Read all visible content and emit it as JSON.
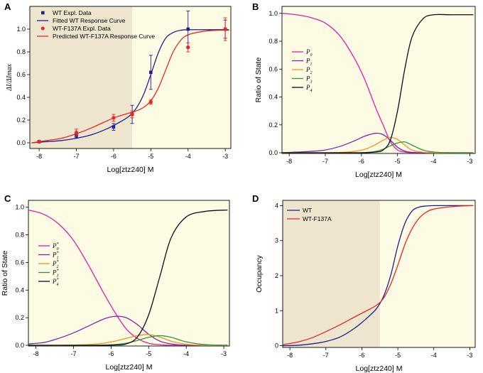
{
  "colors": {
    "background": "#fdfbe3",
    "shade": "#eee5cf",
    "wt": "#1f1f8f",
    "mut": "#e8262a",
    "p0": "#e21ea0",
    "p1": "#7b27a8",
    "p2": "#f2931d",
    "p3": "#2a9a3c",
    "p4": "#0d0d1a"
  },
  "chart_data": [
    {
      "panel": "A",
      "type": "line",
      "title": "",
      "xlabel": "Log[ztz240] M",
      "ylabel": "ΔI/ΔImax",
      "xlim": [
        -8.25,
        -2.85
      ],
      "ylim": [
        -0.05,
        1.2
      ],
      "xticks": [
        -8,
        -7,
        -6,
        -5,
        -4,
        -3
      ],
      "yticks": [
        0.0,
        0.2,
        0.4,
        0.6,
        0.8,
        1.0
      ],
      "xtick_labels": [
        "-8",
        "-7",
        "-6",
        "-5",
        "-4",
        "-3"
      ],
      "ytick_labels": [
        "0.0",
        "0.2",
        "0.4",
        "0.6",
        "0.8",
        "1.0"
      ],
      "shaded_region_x": [
        -8.25,
        -5.5
      ],
      "legend_position": "top-left",
      "legend": [
        "WT Expl. Data",
        "Fitted WT Response Curve",
        "WT-F137A Expl. Data",
        "Predicted WT-F137A Response Curve"
      ],
      "series": [
        {
          "name": "WT Expl. Data",
          "kind": "scatter",
          "marker": "square",
          "color_key": "wt",
          "x": [
            -8,
            -7,
            -6,
            -5.5,
            -5,
            -4,
            -3
          ],
          "y": [
            0.01,
            0.06,
            0.14,
            0.25,
            0.62,
            1.0,
            1.0
          ],
          "err": [
            0.01,
            0.02,
            0.03,
            0.08,
            0.15,
            0.16,
            0.08
          ]
        },
        {
          "name": "Fitted WT Response Curve",
          "kind": "line",
          "color_key": "wt",
          "x": [
            -8.2,
            -7.8,
            -7.4,
            -7.0,
            -6.6,
            -6.2,
            -5.9,
            -5.6,
            -5.4,
            -5.2,
            -5.0,
            -4.8,
            -4.6,
            -4.4,
            -4.2,
            -4.0,
            -3.6,
            -3.2,
            -2.9
          ],
          "y": [
            0.0,
            0.01,
            0.02,
            0.04,
            0.07,
            0.12,
            0.17,
            0.23,
            0.3,
            0.42,
            0.6,
            0.79,
            0.92,
            0.97,
            0.99,
            0.995,
            0.995,
            0.995,
            0.995
          ]
        },
        {
          "name": "WT-F137A Expl. Data",
          "kind": "scatter",
          "marker": "circle",
          "color_key": "mut",
          "x": [
            -8,
            -7,
            -6,
            -5.5,
            -5,
            -4,
            -3
          ],
          "y": [
            0.01,
            0.09,
            0.22,
            0.25,
            0.36,
            0.84,
            1.0
          ],
          "err": [
            0.01,
            0.03,
            0.03,
            0.03,
            0.02,
            0.04,
            0.1
          ]
        },
        {
          "name": "Predicted WT-F137A Response Curve",
          "kind": "line",
          "color_key": "mut",
          "x": [
            -8.2,
            -7.8,
            -7.4,
            -7.0,
            -6.6,
            -6.2,
            -5.9,
            -5.6,
            -5.4,
            -5.2,
            -5.0,
            -4.8,
            -4.6,
            -4.4,
            -4.2,
            -4.0,
            -3.6,
            -3.2,
            -2.9
          ],
          "y": [
            0.0,
            0.02,
            0.04,
            0.08,
            0.13,
            0.19,
            0.23,
            0.26,
            0.28,
            0.31,
            0.37,
            0.48,
            0.64,
            0.8,
            0.9,
            0.95,
            0.98,
            0.99,
            0.99
          ]
        }
      ]
    },
    {
      "panel": "B",
      "type": "line",
      "title": "",
      "xlabel": "Log[ztz240] M",
      "ylabel": "Ratio of State",
      "xlim": [
        -8.2,
        -2.85
      ],
      "ylim": [
        -0.005,
        1.05
      ],
      "xticks": [
        -8,
        -7,
        -6,
        -5,
        -4,
        -3
      ],
      "yticks": [
        0.0,
        0.2,
        0.4,
        0.6,
        0.8,
        1.0
      ],
      "xtick_labels": [
        "-8",
        "-7",
        "-6",
        "-5",
        "-4",
        "-3"
      ],
      "ytick_labels": [
        "0.0",
        "0.2",
        "0.4",
        "0.6",
        "0.8",
        "1.0"
      ],
      "legend_position": "middle-left",
      "series": [
        {
          "name": "P0",
          "sym": "P",
          "sub": "0",
          "color_key": "p0",
          "x": [
            -8.2,
            -7.8,
            -7.4,
            -7.0,
            -6.6,
            -6.2,
            -5.9,
            -5.6,
            -5.4,
            -5.2,
            -5.0,
            -4.8,
            -4.6,
            -4.3,
            -4.0,
            -3.5,
            -2.9
          ],
          "y": [
            1.0,
            0.99,
            0.97,
            0.93,
            0.84,
            0.68,
            0.52,
            0.32,
            0.2,
            0.08,
            0.02,
            0.005,
            0.0,
            0.0,
            0.0,
            0.0,
            0.0
          ]
        },
        {
          "name": "P1",
          "sym": "P",
          "sub": "1",
          "color_key": "p1",
          "x": [
            -8.2,
            -7.8,
            -7.4,
            -7.0,
            -6.6,
            -6.2,
            -5.9,
            -5.6,
            -5.4,
            -5.2,
            -5.0,
            -4.8,
            -4.6,
            -4.3,
            -4.0,
            -3.5,
            -2.9
          ],
          "y": [
            0.0,
            0.005,
            0.01,
            0.02,
            0.045,
            0.085,
            0.12,
            0.14,
            0.13,
            0.09,
            0.04,
            0.012,
            0.003,
            0.0,
            0.0,
            0.0,
            0.0
          ]
        },
        {
          "name": "P2",
          "sym": "P",
          "sub": "2",
          "color_key": "p2",
          "x": [
            -8.2,
            -7.8,
            -7.4,
            -7.0,
            -6.6,
            -6.2,
            -5.9,
            -5.6,
            -5.4,
            -5.2,
            -5.0,
            -4.8,
            -4.6,
            -4.3,
            -4.0,
            -3.5,
            -2.9
          ],
          "y": [
            0.0,
            0.0,
            0.0,
            0.0,
            0.002,
            0.01,
            0.025,
            0.06,
            0.09,
            0.11,
            0.095,
            0.055,
            0.02,
            0.004,
            0.0,
            0.0,
            0.0
          ]
        },
        {
          "name": "P3",
          "sym": "P",
          "sub": "3",
          "color_key": "p3",
          "x": [
            -8.2,
            -7.8,
            -7.4,
            -7.0,
            -6.6,
            -6.2,
            -5.9,
            -5.6,
            -5.4,
            -5.2,
            -5.0,
            -4.8,
            -4.6,
            -4.3,
            -4.0,
            -3.5,
            -2.9
          ],
          "y": [
            0.0,
            0.0,
            0.0,
            0.0,
            0.0,
            0.0,
            0.002,
            0.01,
            0.025,
            0.05,
            0.07,
            0.078,
            0.055,
            0.02,
            0.005,
            0.0,
            0.0
          ]
        },
        {
          "name": "P4",
          "sym": "P",
          "sub": "4",
          "color_key": "p4",
          "x": [
            -8.2,
            -7.8,
            -7.4,
            -7.0,
            -6.6,
            -6.2,
            -5.9,
            -5.6,
            -5.4,
            -5.2,
            -5.0,
            -4.8,
            -4.6,
            -4.3,
            -4.0,
            -3.5,
            -2.9
          ],
          "y": [
            0.0,
            0.0,
            0.0,
            0.0,
            0.0,
            0.0,
            0.0,
            0.005,
            0.02,
            0.09,
            0.3,
            0.6,
            0.83,
            0.96,
            0.99,
            0.99,
            0.99
          ]
        }
      ]
    },
    {
      "panel": "C",
      "type": "line",
      "title": "",
      "xlabel": "Log[ztz240] M",
      "ylabel": "Ratio of State",
      "xlim": [
        -8.2,
        -2.85
      ],
      "ylim": [
        -0.005,
        1.05
      ],
      "xticks": [
        -8,
        -7,
        -6,
        -5,
        -4,
        -3
      ],
      "yticks": [
        0.0,
        0.2,
        0.4,
        0.6,
        0.8,
        1.0
      ],
      "xtick_labels": [
        "-8",
        "-7",
        "-6",
        "-5",
        "-4",
        "-3"
      ],
      "ytick_labels": [
        "0.0",
        "0.2",
        "0.4",
        "0.6",
        "0.8",
        "1.0"
      ],
      "legend_position": "middle-left",
      "series": [
        {
          "name": "P0*",
          "sym": "P",
          "sub": "0",
          "sup": "*",
          "color_key": "p0",
          "x": [
            -8.2,
            -7.8,
            -7.4,
            -7.0,
            -6.6,
            -6.2,
            -5.9,
            -5.6,
            -5.3,
            -5.0,
            -4.7,
            -4.4,
            -4.0,
            -3.5,
            -2.9
          ],
          "y": [
            0.98,
            0.95,
            0.88,
            0.76,
            0.58,
            0.38,
            0.24,
            0.12,
            0.05,
            0.015,
            0.004,
            0.0,
            0.0,
            0.0,
            0.0
          ]
        },
        {
          "name": "P1*",
          "sym": "P",
          "sub": "1",
          "sup": "*",
          "color_key": "p1",
          "x": [
            -8.2,
            -7.8,
            -7.4,
            -7.0,
            -6.6,
            -6.2,
            -5.9,
            -5.6,
            -5.3,
            -5.0,
            -4.7,
            -4.4,
            -4.0,
            -3.5,
            -2.9
          ],
          "y": [
            0.01,
            0.02,
            0.05,
            0.09,
            0.14,
            0.19,
            0.21,
            0.2,
            0.15,
            0.08,
            0.03,
            0.01,
            0.0,
            0.0,
            0.0
          ]
        },
        {
          "name": "P2*",
          "sym": "P",
          "sub": "2",
          "sup": "*",
          "color_key": "p2",
          "x": [
            -8.2,
            -7.8,
            -7.4,
            -7.0,
            -6.6,
            -6.2,
            -5.9,
            -5.6,
            -5.3,
            -5.0,
            -4.7,
            -4.4,
            -4.0,
            -3.5,
            -2.9
          ],
          "y": [
            0.0,
            0.0,
            0.0,
            0.002,
            0.006,
            0.015,
            0.03,
            0.05,
            0.07,
            0.078,
            0.06,
            0.03,
            0.008,
            0.0,
            0.0
          ]
        },
        {
          "name": "P3*",
          "sym": "P",
          "sub": "3",
          "sup": "*",
          "color_key": "p3",
          "x": [
            -8.2,
            -7.8,
            -7.4,
            -7.0,
            -6.6,
            -6.2,
            -5.9,
            -5.6,
            -5.3,
            -5.0,
            -4.7,
            -4.4,
            -4.0,
            -3.5,
            -2.9
          ],
          "y": [
            0.0,
            0.0,
            0.0,
            0.0,
            0.0,
            0.002,
            0.006,
            0.015,
            0.035,
            0.058,
            0.07,
            0.058,
            0.025,
            0.005,
            0.0
          ]
        },
        {
          "name": "P4*",
          "sym": "P",
          "sub": "4",
          "sup": "*",
          "color_key": "p4",
          "x": [
            -8.2,
            -7.8,
            -7.4,
            -7.0,
            -6.6,
            -6.2,
            -5.9,
            -5.6,
            -5.3,
            -5.0,
            -4.7,
            -4.4,
            -4.0,
            -3.5,
            -2.9
          ],
          "y": [
            0.0,
            0.0,
            0.0,
            0.0,
            0.0,
            0.0,
            0.002,
            0.01,
            0.06,
            0.22,
            0.5,
            0.78,
            0.93,
            0.97,
            0.98
          ]
        }
      ]
    },
    {
      "panel": "D",
      "type": "line",
      "title": "",
      "xlabel": "Log[ztz240] M",
      "ylabel": "Occupancy",
      "xlim": [
        -8.2,
        -2.85
      ],
      "ylim": [
        -0.05,
        4.15
      ],
      "xticks": [
        -8,
        -7,
        -6,
        -5,
        -4,
        -3
      ],
      "yticks": [
        0,
        1,
        2,
        3,
        4
      ],
      "xtick_labels": [
        "-8",
        "-7",
        "-6",
        "-5",
        "-4",
        "-3"
      ],
      "ytick_labels": [
        "0",
        "1",
        "2",
        "3",
        "4"
      ],
      "shaded_region_x": [
        -8.2,
        -5.5
      ],
      "legend_position": "top-left",
      "legend": [
        "WT",
        "WT-F137A"
      ],
      "series": [
        {
          "name": "WT",
          "color_key": "wt",
          "x": [
            -8.2,
            -7.8,
            -7.4,
            -7.0,
            -6.6,
            -6.2,
            -5.9,
            -5.6,
            -5.4,
            -5.2,
            -5.0,
            -4.8,
            -4.6,
            -4.4,
            -4.2,
            -4.0,
            -3.6,
            -3.2,
            -2.9
          ],
          "y": [
            0.0,
            0.01,
            0.05,
            0.12,
            0.25,
            0.5,
            0.75,
            1.05,
            1.4,
            2.0,
            2.85,
            3.5,
            3.85,
            3.96,
            3.99,
            4.0,
            4.0,
            4.0,
            4.0
          ]
        },
        {
          "name": "WT-F137A",
          "color_key": "mut",
          "x": [
            -8.2,
            -7.8,
            -7.4,
            -7.0,
            -6.6,
            -6.2,
            -5.9,
            -5.6,
            -5.4,
            -5.2,
            -5.0,
            -4.8,
            -4.6,
            -4.4,
            -4.2,
            -4.0,
            -3.6,
            -3.2,
            -2.9
          ],
          "y": [
            0.03,
            0.1,
            0.22,
            0.4,
            0.6,
            0.82,
            0.98,
            1.15,
            1.35,
            1.75,
            2.3,
            2.9,
            3.35,
            3.65,
            3.82,
            3.9,
            3.96,
            3.99,
            4.0
          ]
        }
      ]
    }
  ]
}
